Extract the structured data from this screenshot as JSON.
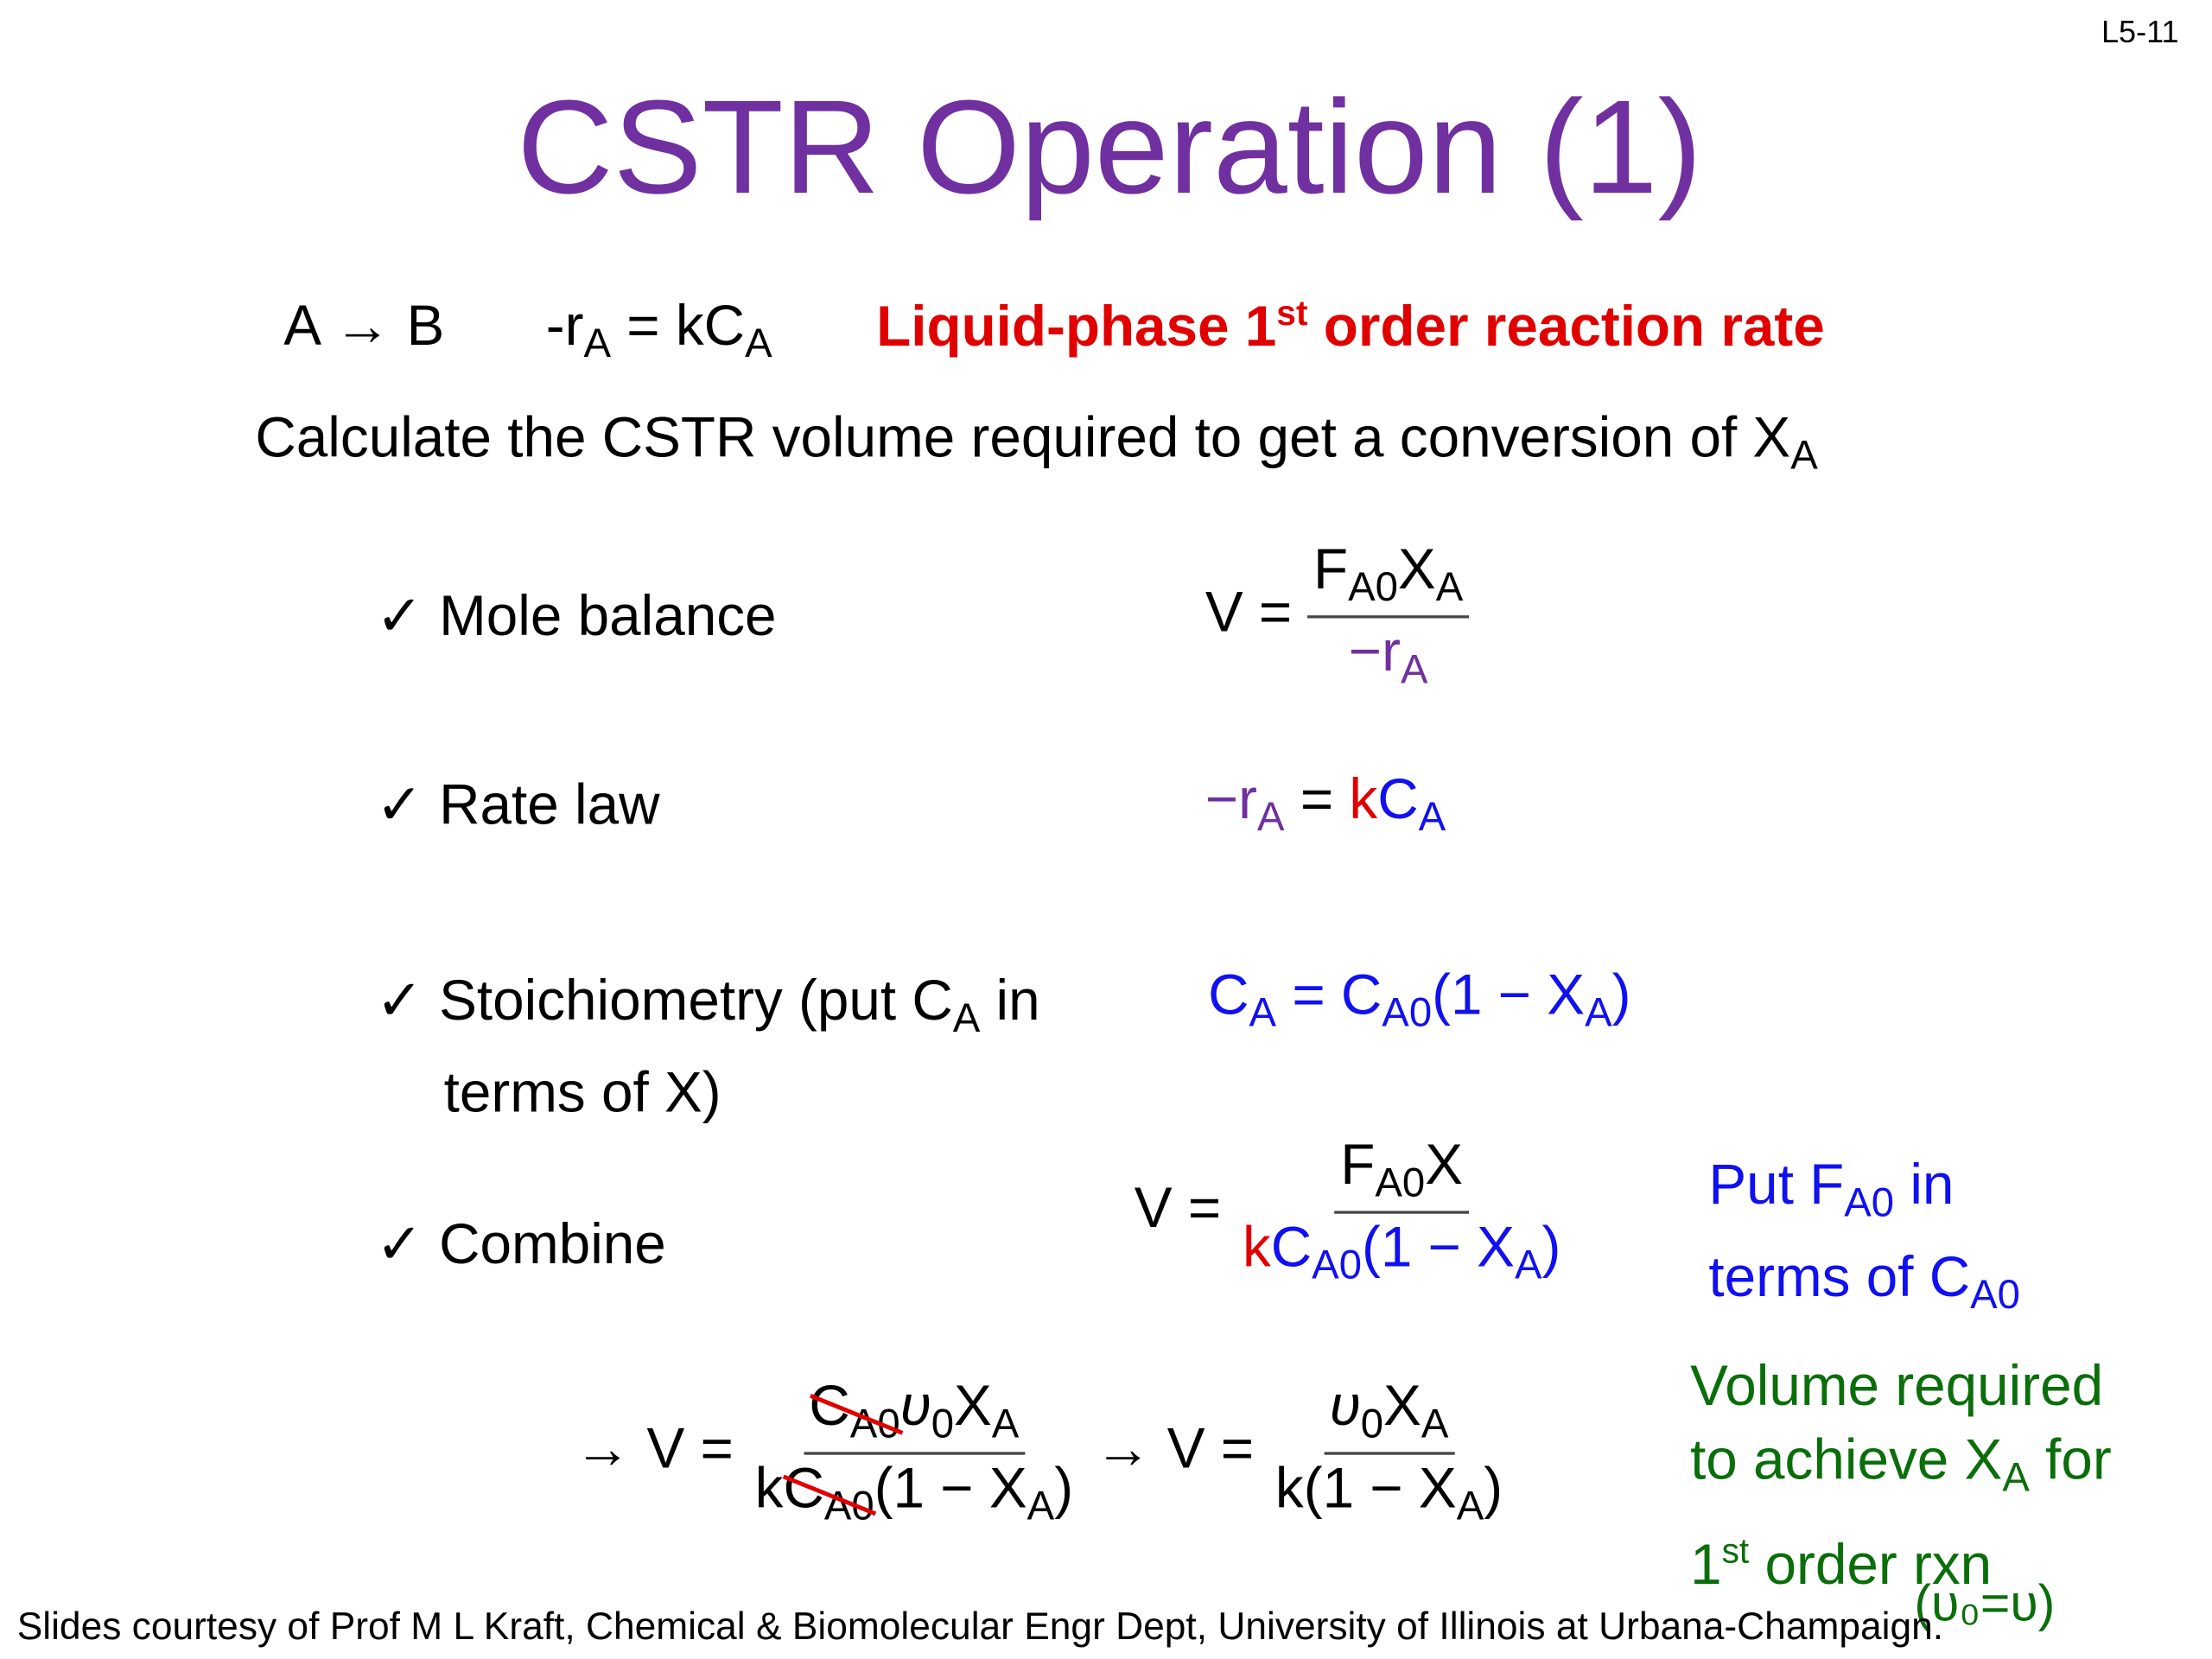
{
  "slide_number": "L5-11",
  "title": "CSTR Operation (1)",
  "reaction": {
    "eq": "A → B",
    "rate_lhs": "-r",
    "rate_sub": "A",
    "rate_rhs": "= kC",
    "rate_rhs_sub": "A",
    "label_pre": "Liquid-phase 1",
    "label_sup": "st",
    "label_post": " order reaction rate"
  },
  "task": {
    "text": "Calculate the CSTR volume required to get a conversion of X",
    "sub": "A"
  },
  "steps": [
    {
      "check": "✓",
      "label": "Mole balance"
    },
    {
      "check": "✓",
      "label": "Rate law"
    },
    {
      "check": "✓",
      "label_pre": "Stoichiometry (put C",
      "label_sub": "A",
      "label_post": " in",
      "label_line2": "terms of X)"
    },
    {
      "check": "✓",
      "label": "Combine"
    }
  ],
  "notes": {
    "combine_line1_pre": "Put F",
    "combine_line1_sub": "A0",
    "combine_line1_post": " in",
    "combine_line2_pre": "terms of C",
    "combine_line2_sub": "A0",
    "result_line1": "Volume required",
    "result_line2_pre": "to achieve X",
    "result_line2_sub": "A",
    "result_line2_post": " for",
    "result_line3_pre": "1",
    "result_line3_sup": "st",
    "result_line3_post": " order rxn",
    "condition": "(υ₀=υ)"
  },
  "colors": {
    "title": "#7030a0",
    "red": "#e00000",
    "blue": "#1010f0",
    "green": "#0a6e0a"
  },
  "footer": "Slides courtesy of Prof M L Kraft, Chemical & Biomolecular Engr Dept, University of Illinois at Urbana-Champaign."
}
